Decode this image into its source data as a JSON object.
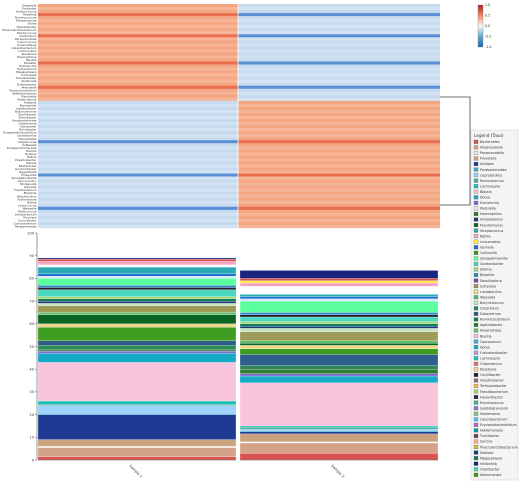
{
  "colors": {
    "high": "#f4a582",
    "highStrong": "#e96d4f",
    "mid": "#f7f7f7",
    "low": "#c6dbef",
    "lowStrong": "#5a8fd6",
    "legendBorder": "#444444"
  },
  "chart_data": [
    {
      "type": "heatmap",
      "columns": [
        "Sample 1",
        "Sample 2"
      ],
      "colorbar_ticks": [
        "1.0",
        "0.5",
        "0.0",
        "-0.5",
        "-1.0"
      ],
      "rows": [
        "Klebsiella",
        "Dorbacter",
        "Enterococcus",
        "Rosellina",
        "Ruminococcus",
        "Streptomyces",
        "Dorea",
        "Faecalibacter",
        "Phascolarctobacterium",
        "Rhodococcus",
        "Clostridium",
        "Paraprevotella",
        "Coprococcus",
        "Anaerostipes",
        "Catenibacterium",
        "Lachnospira",
        "Roseburia",
        "Haemophilus",
        "Blautia",
        "Dialister",
        "Escherichia",
        "Eubacterium",
        "Megasphaera",
        "Collinsella",
        "Acinetobacter",
        "Veillonella",
        "Enterobacter",
        "Prevotella",
        "Ruminiclostridium",
        "Bifidobacterium",
        "Raoultella",
        "Akkermansia",
        "Alistipes",
        "Barnesiella",
        "Agathobacter",
        "Butyricimonas",
        "Oscillibacter",
        "Odoribacter",
        "Parabacteroides",
        "Holdemania",
        "Citrobacter",
        "Turicibacter",
        "Erysipelatoclostridium",
        "Lactobacillus",
        "Faecalitalea",
        "Megamonas",
        "Sutterella",
        "Erysipelotrichaceae",
        "Dielma",
        "Proteus",
        "Hafnia",
        "Intestinibacter",
        "Slackia",
        "Bacteroides",
        "Gordonibacter",
        "Eggerthella",
        "Finegoldia",
        "Senegalimassilia",
        "Leuconostoc",
        "Morganella",
        "Gemella",
        "Fusobacterium",
        "Bilophila",
        "Desulfovibrio",
        "Actinomyces",
        "Rothia",
        "Lactococcus",
        "Weissella",
        "Pediococcus",
        "Solobacterium",
        "Kluyvera",
        "Cronobacter",
        "Coriobacterium",
        "Paraprevotella"
      ],
      "values": [
        [
          1,
          -1
        ],
        [
          1,
          -1
        ],
        [
          1,
          -1
        ],
        [
          1,
          -1
        ],
        [
          1,
          -1
        ],
        [
          1,
          -1
        ],
        [
          1,
          -1
        ],
        [
          1,
          -1
        ],
        [
          1,
          -1
        ],
        [
          1,
          -1
        ],
        [
          1,
          -1
        ],
        [
          1,
          -1
        ],
        [
          1,
          -1
        ],
        [
          1,
          -1
        ],
        [
          1,
          -1
        ],
        [
          1,
          -1
        ],
        [
          1,
          -1
        ],
        [
          1,
          -1
        ],
        [
          1,
          -1
        ],
        [
          1,
          -1
        ],
        [
          1,
          -1
        ],
        [
          1,
          -1
        ],
        [
          1,
          -1
        ],
        [
          1,
          -1
        ],
        [
          1,
          -1
        ],
        [
          1,
          -1
        ],
        [
          1,
          -1
        ],
        [
          1,
          -1
        ],
        [
          1,
          -1
        ],
        [
          1,
          -1
        ],
        [
          1,
          -1
        ],
        [
          1,
          -1
        ],
        [
          -1,
          1
        ],
        [
          -1,
          1
        ],
        [
          -1,
          1
        ],
        [
          -1,
          1
        ],
        [
          -1,
          1
        ],
        [
          -1,
          1
        ],
        [
          -1,
          1
        ],
        [
          -1,
          1
        ],
        [
          -1,
          1
        ],
        [
          -1,
          1
        ],
        [
          -1,
          1
        ],
        [
          -1,
          1
        ],
        [
          -1,
          1
        ],
        [
          -1,
          1
        ],
        [
          -1,
          1
        ],
        [
          -1,
          1
        ],
        [
          -1,
          1
        ],
        [
          -1,
          1
        ],
        [
          -1,
          1
        ],
        [
          -1,
          1
        ],
        [
          -1,
          1
        ],
        [
          -1,
          1
        ],
        [
          -1,
          1
        ],
        [
          -1,
          1
        ],
        [
          -1,
          1
        ],
        [
          -1,
          1
        ],
        [
          -1,
          1
        ],
        [
          -1,
          1
        ],
        [
          -1,
          1
        ],
        [
          -1,
          1
        ],
        [
          -1,
          1
        ],
        [
          -1,
          1
        ],
        [
          -1,
          1
        ],
        [
          -1,
          1
        ],
        [
          -1,
          1
        ],
        [
          -1,
          1
        ],
        [
          -1,
          1
        ],
        [
          -1,
          1
        ],
        [
          -1,
          1
        ],
        [
          -1,
          1
        ],
        [
          -1,
          1
        ],
        [
          -1,
          1
        ]
      ],
      "strong_rows": [
        3,
        10,
        19,
        27,
        45,
        56,
        67
      ]
    },
    {
      "type": "bar",
      "stacked": true,
      "categories": [
        "Sample 1",
        "Sample 2"
      ],
      "ylim": [
        0,
        100
      ],
      "yticks": [
        0,
        10,
        20,
        30,
        40,
        50,
        60,
        70,
        80,
        90,
        100
      ],
      "series": [
        {
          "name": "Bacteroides",
          "color": "#d9534f",
          "values": [
            1.5,
            3.0
          ]
        },
        {
          "name": "Alloprevotella",
          "color": "#d4a28a",
          "values": [
            4.0,
            4.5
          ]
        },
        {
          "name": "Paraprevotella",
          "color": "#ffffff",
          "values": [
            0.5,
            0.5
          ]
        },
        {
          "name": "Prevotella",
          "color": "#c9a27e",
          "values": [
            3.0,
            3.5
          ]
        },
        {
          "name": "Alistipes",
          "color": "#1f3a93",
          "values": [
            11.0,
            1.0
          ]
        },
        {
          "name": "Parabacteroides",
          "color": "#3fa8d6",
          "values": [
            0.5,
            0.5
          ]
        },
        {
          "name": "Coprobacillus",
          "color": "#9fd3ff",
          "values": [
            3.5,
            0.5
          ]
        },
        {
          "name": "Ruminococcus",
          "color": "#44b39b",
          "values": [
            0.5,
            1.0
          ]
        },
        {
          "name": "Lachnospira",
          "color": "#1fbfb8",
          "values": [
            1.5,
            0.5
          ]
        },
        {
          "name": "Blautia",
          "color": "#f6c5dc",
          "values": [
            17.0,
            19.0
          ]
        },
        {
          "name": "Dorea",
          "color": "#17aac6",
          "values": [
            4.0,
            3.0
          ]
        },
        {
          "name": "Escherichia",
          "color": "#7e6cd0",
          "values": [
            1.0,
            1.0
          ]
        },
        {
          "name": "Haemophilus",
          "color": "#2f7d32",
          "values": [
            0.5,
            2.0
          ]
        },
        {
          "name": "Clostridium",
          "color": "#2e8b57",
          "values": [
            2.0,
            1.5
          ]
        },
        {
          "name": "Eubacterium",
          "color": "#2d5f8a",
          "values": [
            2.0,
            5.0
          ]
        },
        {
          "name": "Collinsella",
          "color": "#3e9c20",
          "values": [
            6.0,
            2.5
          ]
        },
        {
          "name": "Roseburia",
          "color": "#f0d68a",
          "values": [
            1.5,
            1.5
          ]
        },
        {
          "name": "Bifidobacterium",
          "color": "#0b6623",
          "values": [
            4.0,
            1.0
          ]
        },
        {
          "name": "Anaerostipes",
          "color": "#5bbf69",
          "values": [
            1.0,
            1.0
          ]
        },
        {
          "name": "Veillonella",
          "color": "#9e9a57",
          "values": [
            3.0,
            4.0
          ]
        },
        {
          "name": "Akkermansia",
          "color": "#c7e3c2",
          "values": [
            1.0,
            1.5
          ]
        },
        {
          "name": "Dialister",
          "color": "#1a3c6e",
          "values": [
            1.0,
            1.0
          ]
        },
        {
          "name": "Megasphaera",
          "color": "#0e7a5c",
          "values": [
            1.0,
            1.0
          ]
        },
        {
          "name": "Faecalibacterium",
          "color": "#a4d86e",
          "values": [
            1.0,
            1.0
          ]
        },
        {
          "name": "Odoribacter",
          "color": "#49d8c0",
          "values": [
            3.0,
            2.0
          ]
        },
        {
          "name": "Barnesiella",
          "color": "#20202a",
          "values": [
            1.0,
            1.0
          ]
        },
        {
          "name": "Oscillibacter",
          "color": "#2c8cc4",
          "values": [
            1.0,
            1.0
          ]
        },
        {
          "name": "Sutterella",
          "color": "#5cff9e",
          "values": [
            3.0,
            5.0
          ]
        },
        {
          "name": "Klebsiella",
          "color": "#d8e9ff",
          "values": [
            1.0,
            1.0
          ]
        },
        {
          "name": "Enterococcus",
          "color": "#1e6fd0",
          "values": [
            1.0,
            1.0
          ]
        },
        {
          "name": "Streptococcus",
          "color": "#27aab4",
          "values": [
            3.0,
            1.0
          ]
        },
        {
          "name": "Citrobacter",
          "color": "#ffffff",
          "values": [
            1.0,
            3.5
          ]
        },
        {
          "name": "Rothia",
          "color": "#f7a4c4",
          "values": [
            1.5,
            1.5
          ]
        },
        {
          "name": "Leuconostoc",
          "color": "#ffef3a",
          "values": [
            0.0,
            1.0
          ]
        },
        {
          "name": "Fusobacterium",
          "color": "#d9534f",
          "values": [
            1.0,
            1.0
          ]
        },
        {
          "name": "Morganella",
          "color": "#1a237e",
          "values": [
            0.5,
            3.5
          ]
        }
      ]
    }
  ],
  "legend": {
    "title": "Legend (Taxa)",
    "items": [
      {
        "label": "Bacteroides",
        "color": "#d9534f"
      },
      {
        "label": "Alloprevotella",
        "color": "#d4a28a"
      },
      {
        "label": "Paraprevotella",
        "color": "#e8e8e8"
      },
      {
        "label": "Prevotella",
        "color": "#c9a27e"
      },
      {
        "label": "Alistipes",
        "color": "#1f3a93"
      },
      {
        "label": "Parabacteroides",
        "color": "#3fa8d6"
      },
      {
        "label": "Coprobacillus",
        "color": "#9fd3ff"
      },
      {
        "label": "Ruminococcus",
        "color": "#44b39b"
      },
      {
        "label": "Lachnospira",
        "color": "#1fbfb8"
      },
      {
        "label": "Blautia",
        "color": "#f6c5dc"
      },
      {
        "label": "Dorea",
        "color": "#17aac6"
      },
      {
        "label": "Escherichia",
        "color": "#7e6cd0"
      },
      {
        "label": "Klebsiella",
        "color": "#d8e9ff"
      },
      {
        "label": "Haemophilus",
        "color": "#2f7d32"
      },
      {
        "label": "Acinetobacter",
        "color": "#1a3c6e"
      },
      {
        "label": "Pseudomonas",
        "color": "#0b6623"
      },
      {
        "label": "Streptococcus",
        "color": "#27aab4"
      },
      {
        "label": "Rothia",
        "color": "#f7a4c4"
      },
      {
        "label": "Leuconostoc",
        "color": "#ffef3a"
      },
      {
        "label": "Gemella",
        "color": "#1e6fd0"
      },
      {
        "label": "Collinsella",
        "color": "#3e9c20"
      },
      {
        "label": "Senegalimassilia",
        "color": "#5cff9e"
      },
      {
        "label": "Gordonibacter",
        "color": "#49d8c0"
      },
      {
        "label": "Dielma",
        "color": "#a4d86e"
      },
      {
        "label": "Bilophila",
        "color": "#2c8cc4"
      },
      {
        "label": "Desulfovibrio",
        "color": "#7a4b9e"
      },
      {
        "label": "Sutterella",
        "color": "#9e9a57"
      },
      {
        "label": "Lactobacillus",
        "color": "#f0d68a"
      },
      {
        "label": "Weissella",
        "color": "#5bbf69"
      },
      {
        "label": "Butyricicoccus",
        "color": "#c7e3c2"
      },
      {
        "label": "Clostridium",
        "color": "#2e8b57"
      },
      {
        "label": "Eubacterium",
        "color": "#2d5f8a"
      },
      {
        "label": "Ruminiclostridium",
        "color": "#0e7a5c"
      },
      {
        "label": "Agathobacter",
        "color": "#2f7d32"
      },
      {
        "label": "Anaerostipes",
        "color": "#5bbf69"
      },
      {
        "label": "Blautia",
        "color": "#f6c5dc"
      },
      {
        "label": "Coprococcus",
        "color": "#3fa8d6"
      },
      {
        "label": "Dorea",
        "color": "#17aac6"
      },
      {
        "label": "Fusicatenibacter",
        "color": "#b39ddb"
      },
      {
        "label": "Lachnospira",
        "color": "#1fbfb8"
      },
      {
        "label": "Oribacterium",
        "color": "#e57373"
      },
      {
        "label": "Roseburia",
        "color": "#f0d68a"
      },
      {
        "label": "Oscillibacter",
        "color": "#20202a"
      },
      {
        "label": "Intestinibacter",
        "color": "#8d6e63"
      },
      {
        "label": "Terrisporobacter",
        "color": "#ffb74d"
      },
      {
        "label": "Faecalibacterium",
        "color": "#a4d86e"
      },
      {
        "label": "Flavonifractor",
        "color": "#263238"
      },
      {
        "label": "Ruminococcus",
        "color": "#44b39b"
      },
      {
        "label": "Subdoligranulum",
        "color": "#9575cd"
      },
      {
        "label": "Holdemania",
        "color": "#81c784"
      },
      {
        "label": "Catenibacterium",
        "color": "#4fc3f7"
      },
      {
        "label": "Erysipelatoclostridium",
        "color": "#ba68c8"
      },
      {
        "label": "Holdemanella",
        "color": "#0097a7"
      },
      {
        "label": "Turicibacter",
        "color": "#6d4c41"
      },
      {
        "label": "Sarcina",
        "color": "#ffab91"
      },
      {
        "label": "Phascolarctobacterium",
        "color": "#c0ca33"
      },
      {
        "label": "Dialister",
        "color": "#1a3c6e"
      },
      {
        "label": "Megasphaera",
        "color": "#0e7a5c"
      },
      {
        "label": "Veillonella",
        "color": "#1a237e"
      },
      {
        "label": "Odoribacter",
        "color": "#49d8c0"
      },
      {
        "label": "Akkermansia",
        "color": "#3e9c20"
      }
    ]
  }
}
